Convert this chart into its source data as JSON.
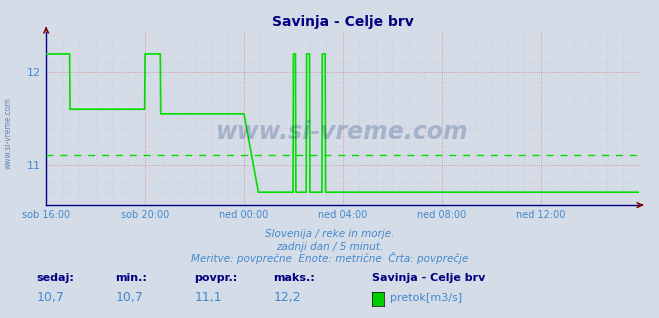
{
  "title": "Savinja - Celje brv",
  "title_color": "#000080",
  "background_color": "#d4dce8",
  "plot_bg_color": "#d4dce8",
  "line_color": "#00dd00",
  "avg_line_color": "#00dd00",
  "avg_line_value": 11.1,
  "ylim_min": 10.56,
  "ylim_max": 12.44,
  "yticks": [
    11,
    12
  ],
  "tick_color": "#4488cc",
  "grid_color_major": "#e08080",
  "grid_color_minor": "#e8b8b8",
  "watermark": "www.si-vreme.com",
  "watermark_color": "#1a3a7a",
  "subtitle1": "Slovenija / reke in morje.",
  "subtitle2": "zadnji dan / 5 minut.",
  "subtitle3": "Meritve: povprečne  Enote: metrične  Črta: povprečje",
  "subtitle_color": "#4488cc",
  "legend_title": "Savinja - Celje brv",
  "legend_label": "pretok[m3/s]",
  "legend_color": "#00cc00",
  "stats_label_color": "#000080",
  "stats_value_color": "#4488cc",
  "sedaj_label": "sedaj:",
  "sedaj_value": "10,7",
  "min_label": "min.:",
  "min_value": "10,7",
  "povpr_label": "povpr.:",
  "povpr_value": "11,1",
  "maks_label": "maks.:",
  "maks_value": "12,2",
  "tick_labels": [
    "sob 16:00",
    "sob 20:00",
    "ned 00:00",
    "ned 04:00",
    "ned 08:00",
    "ned 12:00"
  ],
  "tick_positions": [
    0,
    240,
    480,
    720,
    960,
    1200
  ],
  "total_points": 1440,
  "x_arrow_color": "#800000",
  "axis_color": "#000080",
  "left_watermark": "www.si-vreme.com"
}
